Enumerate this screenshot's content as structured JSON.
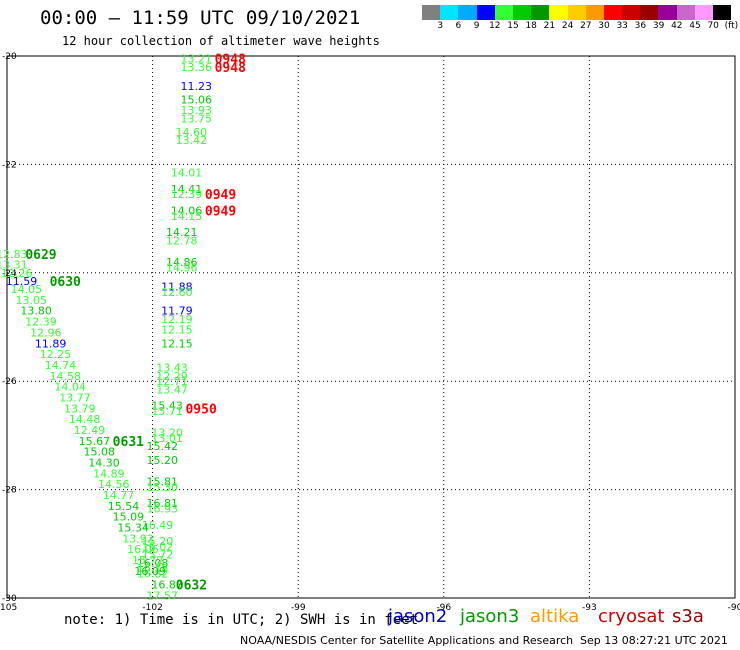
{
  "header": {
    "title": "00:00 – 11:59 UTC 09/10/2021",
    "subtitle": "12 hour collection of altimeter wave heights"
  },
  "legend": {
    "colors": [
      "#808080",
      "#00e5ff",
      "#00aaff",
      "#0000ff",
      "#33ff33",
      "#00cc00",
      "#009900",
      "#ffff00",
      "#ffcc00",
      "#ff9900",
      "#ff0000",
      "#cc0000",
      "#990000",
      "#990099",
      "#cc66cc",
      "#ff99ff",
      "#000000"
    ],
    "ticks": [
      "3",
      "6",
      "9",
      "12",
      "15",
      "18",
      "21",
      "24",
      "27",
      "30",
      "33",
      "36",
      "39",
      "42",
      "45",
      "70",
      "(ft)"
    ]
  },
  "footer": {
    "note": "note: 1) Time is in UTC; 2) SWH is in feet",
    "satellites": [
      {
        "name": "jason2",
        "color": "#0000cc"
      },
      {
        "name": "jason3",
        "color": "#009900"
      },
      {
        "name": "altika",
        "color": "#ff9900"
      },
      {
        "name": "cryosat",
        "color": "#cc0000"
      },
      {
        "name": "s3a",
        "color": "#990000"
      }
    ],
    "credit": "NOAA/NESDIS Center for Satellite Applications and Research",
    "timestamp": "Sep 13 08:27:21 UTC 2021"
  },
  "chart_data": {
    "type": "scatter",
    "title": "00:00 – 11:59 UTC 09/10/2021",
    "subtitle": "12 hour collection of altimeter wave heights",
    "xlim": [
      -105,
      -90
    ],
    "ylim": [
      -30,
      -20
    ],
    "x_ticks": [
      "-105",
      "-102",
      "-99",
      "-96",
      "-93",
      "-90"
    ],
    "y_ticks": [
      "-20",
      "-22",
      "-24",
      "-26",
      "-28",
      "-30"
    ],
    "grid": true,
    "points": [
      {
        "lon": -101.1,
        "lat": -20.05,
        "label": "13.21",
        "color": "#33ff33"
      },
      {
        "lon": -101.1,
        "lat": -20.2,
        "label": "13.36",
        "color": "#33ff33"
      },
      {
        "lon": -101.1,
        "lat": -20.55,
        "label": "11.23",
        "color": "#0000ff"
      },
      {
        "lon": -101.1,
        "lat": -20.8,
        "label": "15.06",
        "color": "#00cc00"
      },
      {
        "lon": -101.1,
        "lat": -21.0,
        "label": "13.93",
        "color": "#33ff33"
      },
      {
        "lon": -101.1,
        "lat": -21.15,
        "label": "13.75",
        "color": "#33ff33"
      },
      {
        "lon": -101.2,
        "lat": -21.4,
        "label": "14.60",
        "color": "#33ff33"
      },
      {
        "lon": -101.2,
        "lat": -21.55,
        "label": "13.42",
        "color": "#33ff33"
      },
      {
        "lon": -101.3,
        "lat": -22.15,
        "label": "14.01",
        "color": "#33ff33"
      },
      {
        "lon": -101.3,
        "lat": -22.45,
        "label": "14.41",
        "color": "#00cc00"
      },
      {
        "lon": -101.3,
        "lat": -22.55,
        "label": "12.39",
        "color": "#33ff33"
      },
      {
        "lon": -101.3,
        "lat": -22.85,
        "label": "14.06",
        "color": "#00cc00"
      },
      {
        "lon": -101.3,
        "lat": -22.95,
        "label": "14.15",
        "color": "#33ff33"
      },
      {
        "lon": -101.4,
        "lat": -23.25,
        "label": "14.21",
        "color": "#00cc00"
      },
      {
        "lon": -101.4,
        "lat": -23.4,
        "label": "12.78",
        "color": "#33ff33"
      },
      {
        "lon": -101.4,
        "lat": -23.8,
        "label": "14.86",
        "color": "#00cc00"
      },
      {
        "lon": -101.4,
        "lat": -23.9,
        "label": "14.96",
        "color": "#33ff33"
      },
      {
        "lon": -101.5,
        "lat": -24.25,
        "label": "11.88",
        "color": "#0000ff"
      },
      {
        "lon": -101.5,
        "lat": -24.35,
        "label": "12.60",
        "color": "#33ff33"
      },
      {
        "lon": -101.5,
        "lat": -24.7,
        "label": "11.79",
        "color": "#0000ff"
      },
      {
        "lon": -101.5,
        "lat": -24.85,
        "label": "12.19",
        "color": "#33ff33"
      },
      {
        "lon": -101.5,
        "lat": -25.05,
        "label": "12.15",
        "color": "#33ff33"
      },
      {
        "lon": -101.5,
        "lat": -25.3,
        "label": "12.15",
        "color": "#00cc00"
      },
      {
        "lon": -101.6,
        "lat": -25.75,
        "label": "13.43",
        "color": "#33ff33"
      },
      {
        "lon": -101.6,
        "lat": -25.9,
        "label": "12.29",
        "color": "#33ff33"
      },
      {
        "lon": -101.6,
        "lat": -26.0,
        "label": "12.71",
        "color": "#33ff33"
      },
      {
        "lon": -101.6,
        "lat": -26.15,
        "label": "13.47",
        "color": "#33ff33"
      },
      {
        "lon": -101.7,
        "lat": -26.45,
        "label": "15.43",
        "color": "#00cc00"
      },
      {
        "lon": -101.7,
        "lat": -26.55,
        "label": "15.71",
        "color": "#33ff33"
      },
      {
        "lon": -101.7,
        "lat": -26.95,
        "label": "13.20",
        "color": "#33ff33"
      },
      {
        "lon": -101.7,
        "lat": -27.05,
        "label": "13.01",
        "color": "#33ff33"
      },
      {
        "lon": -101.8,
        "lat": -27.2,
        "label": "15.42",
        "color": "#00cc00"
      },
      {
        "lon": -101.8,
        "lat": -27.45,
        "label": "15.20",
        "color": "#00cc00"
      },
      {
        "lon": -101.8,
        "lat": -27.85,
        "label": "15.81",
        "color": "#00cc00"
      },
      {
        "lon": -101.8,
        "lat": -27.95,
        "label": "15.30",
        "color": "#33ff33"
      },
      {
        "lon": -101.8,
        "lat": -28.25,
        "label": "16.81",
        "color": "#00cc00"
      },
      {
        "lon": -101.8,
        "lat": -28.35,
        "label": "16.93",
        "color": "#33ff33"
      },
      {
        "lon": -101.9,
        "lat": -28.65,
        "label": "16.49",
        "color": "#33ff33"
      },
      {
        "lon": -101.9,
        "lat": -28.95,
        "label": "15.20",
        "color": "#33ff33"
      },
      {
        "lon": -101.9,
        "lat": -29.05,
        "label": "16.02",
        "color": "#33ff33"
      },
      {
        "lon": -101.9,
        "lat": -29.2,
        "label": "15.72",
        "color": "#33ff33"
      },
      {
        "lon": -102.0,
        "lat": -29.35,
        "label": "16.08",
        "color": "#00cc00"
      },
      {
        "lon": -102.0,
        "lat": -29.45,
        "label": "16.18",
        "color": "#33ff33"
      },
      {
        "lon": -102.0,
        "lat": -29.55,
        "label": "16.82",
        "color": "#33ff33"
      },
      {
        "lon": -101.7,
        "lat": -29.75,
        "label": "16.87",
        "color": "#00cc00"
      },
      {
        "lon": -101.8,
        "lat": -29.95,
        "label": "17.57",
        "color": "#33ff33"
      },
      {
        "lon": -104.9,
        "lat": -23.65,
        "label": "12.83",
        "color": "#33ff33"
      },
      {
        "lon": -104.9,
        "lat": -23.85,
        "label": "13.31",
        "color": "#33ff33"
      },
      {
        "lon": -104.8,
        "lat": -24.0,
        "label": "12.26",
        "color": "#33ff33"
      },
      {
        "lon": -104.7,
        "lat": -24.15,
        "label": "11.59",
        "color": "#0000ff"
      },
      {
        "lon": -104.6,
        "lat": -24.3,
        "label": "14.05",
        "color": "#33ff33"
      },
      {
        "lon": -104.5,
        "lat": -24.5,
        "label": "13.05",
        "color": "#33ff33"
      },
      {
        "lon": -104.4,
        "lat": -24.7,
        "label": "13.80",
        "color": "#00cc00"
      },
      {
        "lon": -104.3,
        "lat": -24.9,
        "label": "12.39",
        "color": "#33ff33"
      },
      {
        "lon": -104.2,
        "lat": -25.1,
        "label": "12.96",
        "color": "#33ff33"
      },
      {
        "lon": -104.1,
        "lat": -25.3,
        "label": "11.89",
        "color": "#0000ff"
      },
      {
        "lon": -104.0,
        "lat": -25.5,
        "label": "12.25",
        "color": "#33ff33"
      },
      {
        "lon": -103.9,
        "lat": -25.7,
        "label": "14.74",
        "color": "#33ff33"
      },
      {
        "lon": -103.8,
        "lat": -25.9,
        "label": "14.58",
        "color": "#33ff33"
      },
      {
        "lon": -103.7,
        "lat": -26.1,
        "label": "14.04",
        "color": "#33ff33"
      },
      {
        "lon": -103.6,
        "lat": -26.3,
        "label": "13.77",
        "color": "#33ff33"
      },
      {
        "lon": -103.5,
        "lat": -26.5,
        "label": "13.79",
        "color": "#33ff33"
      },
      {
        "lon": -103.4,
        "lat": -26.7,
        "label": "14.48",
        "color": "#33ff33"
      },
      {
        "lon": -103.3,
        "lat": -26.9,
        "label": "12.49",
        "color": "#33ff33"
      },
      {
        "lon": -103.2,
        "lat": -27.1,
        "label": "15.67",
        "color": "#00cc00"
      },
      {
        "lon": -103.1,
        "lat": -27.3,
        "label": "15.08",
        "color": "#00cc00"
      },
      {
        "lon": -103.0,
        "lat": -27.5,
        "label": "14.30",
        "color": "#00cc00"
      },
      {
        "lon": -102.9,
        "lat": -27.7,
        "label": "14.89",
        "color": "#33ff33"
      },
      {
        "lon": -102.8,
        "lat": -27.9,
        "label": "14.56",
        "color": "#33ff33"
      },
      {
        "lon": -102.7,
        "lat": -28.1,
        "label": "14.77",
        "color": "#33ff33"
      },
      {
        "lon": -102.6,
        "lat": -28.3,
        "label": "15.54",
        "color": "#00cc00"
      },
      {
        "lon": -102.5,
        "lat": -28.5,
        "label": "15.09",
        "color": "#00cc00"
      },
      {
        "lon": -102.4,
        "lat": -28.7,
        "label": "15.34",
        "color": "#00cc00"
      },
      {
        "lon": -102.3,
        "lat": -28.9,
        "label": "13.92",
        "color": "#33ff33"
      },
      {
        "lon": -102.2,
        "lat": -29.1,
        "label": "16.06",
        "color": "#33ff33"
      },
      {
        "lon": -102.1,
        "lat": -29.3,
        "label": "15.72",
        "color": "#33ff33"
      },
      {
        "lon": -102.05,
        "lat": -29.5,
        "label": "16.09",
        "color": "#00cc00"
      }
    ],
    "time_labels": [
      {
        "lon": -100.4,
        "lat": -20.05,
        "label": "0948",
        "color": "#ff0000"
      },
      {
        "lon": -100.4,
        "lat": -20.2,
        "label": "0948",
        "color": "#ff0000"
      },
      {
        "lon": -100.6,
        "lat": -22.55,
        "label": "0949",
        "color": "#ff0000"
      },
      {
        "lon": -100.6,
        "lat": -22.85,
        "label": "0949",
        "color": "#ff0000"
      },
      {
        "lon": -101.0,
        "lat": -26.5,
        "label": "0950",
        "color": "#ff0000"
      },
      {
        "lon": -104.3,
        "lat": -23.65,
        "label": "0629",
        "color": "#009900"
      },
      {
        "lon": -103.8,
        "lat": -24.15,
        "label": "0630",
        "color": "#009900"
      },
      {
        "lon": -102.5,
        "lat": -27.1,
        "label": "0631",
        "color": "#009900"
      },
      {
        "lon": -101.2,
        "lat": -29.75,
        "label": "0632",
        "color": "#009900"
      }
    ]
  }
}
